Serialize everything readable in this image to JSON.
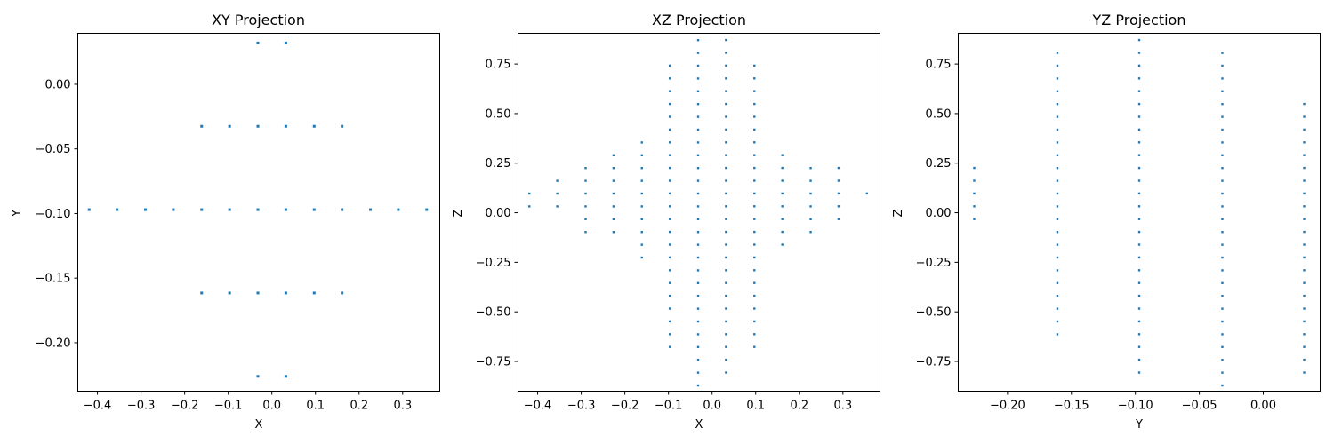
{
  "chart_data": [
    {
      "type": "scatter",
      "title": "XY Projection",
      "xlabel": "X",
      "ylabel": "Y",
      "xlim": [
        -0.445,
        0.385
      ],
      "ylim": [
        -0.2375,
        0.0395
      ],
      "xticks": [
        -0.4,
        -0.3,
        -0.2,
        -0.1,
        0.0,
        0.1,
        0.2,
        0.3
      ],
      "xtick_labels": [
        "−0.4",
        "−0.3",
        "−0.2",
        "−0.1",
        "0.0",
        "0.1",
        "0.2",
        "0.3"
      ],
      "yticks": [
        0.0,
        -0.05,
        -0.1,
        -0.15,
        -0.2
      ],
      "ytick_labels": [
        "0.00",
        "−0.05",
        "−0.10",
        "−0.15",
        "−0.20"
      ],
      "grid": false,
      "color": "#1f77b4",
      "points": {
        "rows": [
          {
            "y": 0.032,
            "x": [
              -0.032,
              0.032
            ]
          },
          {
            "y": -0.0325,
            "x": [
              -0.161,
              -0.097,
              -0.032,
              0.032,
              0.097,
              0.161
            ]
          },
          {
            "y": -0.097,
            "x": [
              -0.419,
              -0.355,
              -0.29,
              -0.226,
              -0.161,
              -0.097,
              -0.032,
              0.032,
              0.097,
              0.161,
              0.226,
              0.29,
              0.355
            ]
          },
          {
            "y": -0.1615,
            "x": [
              -0.161,
              -0.097,
              -0.032,
              0.032,
              0.097,
              0.161
            ]
          },
          {
            "y": -0.226,
            "x": [
              -0.032,
              0.032
            ]
          }
        ]
      }
    },
    {
      "type": "scatter",
      "title": "XZ Projection",
      "xlabel": "X",
      "ylabel": "Z",
      "xlim": [
        -0.445,
        0.385
      ],
      "ylim": [
        -0.9,
        0.905
      ],
      "xticks": [
        -0.4,
        -0.3,
        -0.2,
        -0.1,
        0.0,
        0.1,
        0.2,
        0.3
      ],
      "xtick_labels": [
        "−0.4",
        "−0.3",
        "−0.2",
        "−0.1",
        "0.0",
        "0.1",
        "0.2",
        "0.3"
      ],
      "yticks": [
        0.75,
        0.5,
        0.25,
        0.0,
        -0.25,
        -0.5,
        -0.75
      ],
      "ytick_labels": [
        "0.75",
        "0.50",
        "0.25",
        "0.00",
        "−0.25",
        "−0.50",
        "−0.75"
      ],
      "grid": false,
      "color": "#1f77b4",
      "z_step": 0.0645,
      "columns": [
        {
          "x": -0.419,
          "z_min": 0.032,
          "z_max": 0.097
        },
        {
          "x": -0.355,
          "z_min": 0.032,
          "z_max": 0.161
        },
        {
          "x": -0.29,
          "z_min": -0.097,
          "z_max": 0.226
        },
        {
          "x": -0.226,
          "z_min": -0.097,
          "z_max": 0.29
        },
        {
          "x": -0.161,
          "z_min": -0.226,
          "z_max": 0.355
        },
        {
          "x": -0.097,
          "z_min": -0.677,
          "z_max": 0.742
        },
        {
          "x": -0.032,
          "z_min": -0.871,
          "z_max": 0.871
        },
        {
          "x": 0.032,
          "z_min": -0.806,
          "z_max": 0.871
        },
        {
          "x": 0.097,
          "z_min": -0.677,
          "z_max": 0.742
        },
        {
          "x": 0.161,
          "z_min": -0.161,
          "z_max": 0.29
        },
        {
          "x": 0.226,
          "z_min": -0.097,
          "z_max": 0.226
        },
        {
          "x": 0.29,
          "z_min": -0.032,
          "z_max": 0.226
        },
        {
          "x": 0.355,
          "z_min": 0.097,
          "z_max": 0.097
        }
      ]
    },
    {
      "type": "scatter",
      "title": "YZ Projection",
      "xlabel": "Y",
      "ylabel": "Z",
      "xlim": [
        -0.2385,
        0.0445
      ],
      "ylim": [
        -0.9,
        0.905
      ],
      "xticks": [
        -0.2,
        -0.15,
        -0.1,
        -0.05,
        0.0
      ],
      "xtick_labels": [
        "−0.20",
        "−0.15",
        "−0.10",
        "−0.05",
        "0.00"
      ],
      "yticks": [
        0.75,
        0.5,
        0.25,
        0.0,
        -0.25,
        -0.5,
        -0.75
      ],
      "ytick_labels": [
        "0.75",
        "0.50",
        "0.25",
        "0.00",
        "−0.25",
        "−0.50",
        "−0.75"
      ],
      "grid": false,
      "color": "#1f77b4",
      "z_step": 0.0645,
      "columns": [
        {
          "x": -0.226,
          "z_min": -0.032,
          "z_max": 0.226
        },
        {
          "x": -0.161,
          "z_min": -0.613,
          "z_max": 0.806
        },
        {
          "x": -0.097,
          "z_min": -0.806,
          "z_max": 0.871
        },
        {
          "x": -0.032,
          "z_min": -0.871,
          "z_max": 0.806
        },
        {
          "x": 0.032,
          "z_min": -0.806,
          "z_max": 0.548
        }
      ]
    }
  ]
}
